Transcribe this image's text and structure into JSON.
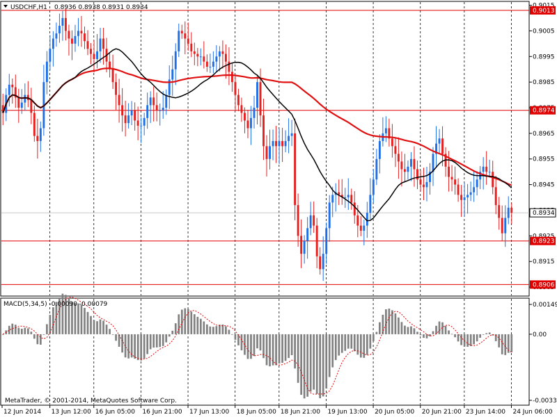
{
  "window": {
    "symbol_label": "USDCHF,H1",
    "ohlc": "0.8936 0.8938 0.8931 0.8934",
    "copyright": "MetaTrader, © 2001-2014, MetaQuotes Software Corp."
  },
  "colors": {
    "bull": "#1e6ee6",
    "bear": "#e61e1e",
    "ma_fast": "#000000",
    "ma_slow": "#e01010",
    "level_line": "#e00000",
    "hist": "#808080",
    "signal": "#e00000",
    "grid": "#000000"
  },
  "chart_data": [
    {
      "type": "candlestick",
      "title": "USDCHF,H1",
      "ylim": [
        0.89015,
        0.90165
      ],
      "price_ticks": [
        "0.9015",
        "0.9005",
        "0.8995",
        "0.8985",
        "0.8975",
        "0.8965",
        "0.8955",
        "0.8945",
        "0.8935",
        "0.8925",
        "0.8915",
        "0.8905"
      ],
      "current_price": "0.8934",
      "levels": [
        {
          "label": "0.9013",
          "value": 0.9013
        },
        {
          "label": "0.8974",
          "value": 0.8974
        },
        {
          "label": "0.8923",
          "value": 0.8923
        },
        {
          "label": "0.8906",
          "value": 0.8906
        }
      ],
      "time_labels": [
        "12 Jun 2014",
        "13 Jun 12:00",
        "16 Jun 05:00",
        "16 Jun 21:00",
        "17 Jun 13:00",
        "18 Jun 05:00",
        "18 Jun 21:00",
        "19 Jun 13:00",
        "20 Jun 05:00",
        "20 Jun 21:00",
        "23 Jun 14:00",
        "24 Jun 06:00"
      ],
      "close": [
        0.8973,
        0.898,
        0.8984,
        0.8983,
        0.8979,
        0.8975,
        0.8977,
        0.898,
        0.8978,
        0.8973,
        0.8964,
        0.8962,
        0.8967,
        0.8985,
        0.8993,
        0.8998,
        0.9002,
        0.9004,
        0.9007,
        0.901,
        0.9005,
        0.9002,
        0.9,
        0.9003,
        0.9005,
        0.9004,
        0.9001,
        0.8998,
        0.8996,
        0.8994,
        0.8997,
        0.9002,
        0.8998,
        0.8993,
        0.899,
        0.8985,
        0.898,
        0.8976,
        0.8972,
        0.8969,
        0.8972,
        0.8974,
        0.897,
        0.8968,
        0.8968,
        0.8971,
        0.8976,
        0.8979,
        0.8976,
        0.8974,
        0.8974,
        0.8975,
        0.898,
        0.8986,
        0.899,
        0.8997,
        0.9005,
        0.9004,
        0.9002,
        0.9,
        0.8997,
        0.8996,
        0.8995,
        0.8995,
        0.8993,
        0.8991,
        0.8991,
        0.8993,
        0.8995,
        0.8997,
        0.8996,
        0.8993,
        0.8989,
        0.8985,
        0.898,
        0.8976,
        0.8973,
        0.897,
        0.8967,
        0.8971,
        0.8975,
        0.8985,
        0.8972,
        0.896,
        0.8955,
        0.896,
        0.8962,
        0.896,
        0.8962,
        0.896,
        0.8962,
        0.8964,
        0.8965,
        0.8937,
        0.8925,
        0.8918,
        0.8923,
        0.8928,
        0.8933,
        0.8929,
        0.8917,
        0.8912,
        0.8918,
        0.8928,
        0.8938,
        0.8941,
        0.8942,
        0.8941,
        0.894,
        0.894,
        0.8941,
        0.8938,
        0.8933,
        0.8929,
        0.8927,
        0.8929,
        0.8934,
        0.8941,
        0.8947,
        0.8955,
        0.8962,
        0.8965,
        0.8967,
        0.8963,
        0.896,
        0.8957,
        0.8954,
        0.8951,
        0.895,
        0.8952,
        0.8955,
        0.8951,
        0.8947,
        0.8945,
        0.8944,
        0.8946,
        0.895,
        0.8957,
        0.8961,
        0.8963,
        0.8957,
        0.8952,
        0.8948,
        0.8947,
        0.8945,
        0.8941,
        0.8939,
        0.894,
        0.8941,
        0.8942,
        0.8944,
        0.8947,
        0.895,
        0.8952,
        0.895,
        0.895,
        0.8944,
        0.8937,
        0.8932,
        0.8926,
        0.8932,
        0.8936,
        0.8934
      ],
      "ma_fast_label": "black moving average",
      "ma_slow_label": "red moving average"
    },
    {
      "type": "bar",
      "title": "MACD(5,34,5) -0.00090 -0.00079",
      "ylim": [
        -0.0033,
        0.00149
      ],
      "ticks": [
        "0.00149",
        "0.00",
        "-0.0033"
      ],
      "histogram_note": "MACD histogram (gray) with signal line (red dashed)"
    }
  ]
}
